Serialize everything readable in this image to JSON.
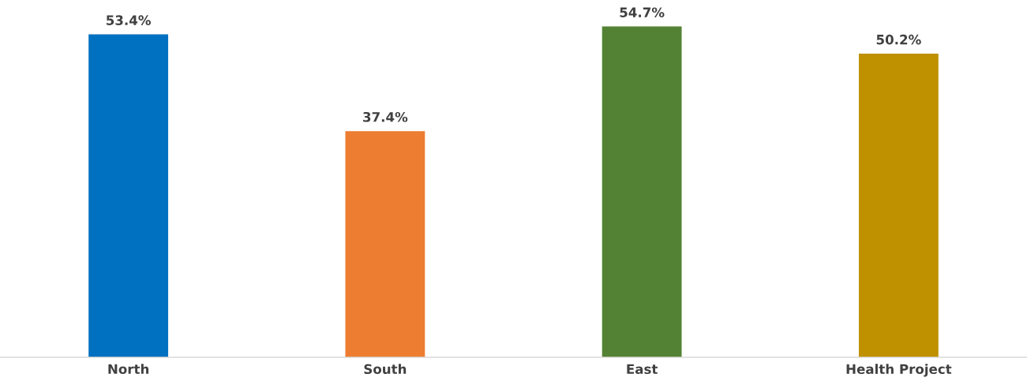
{
  "chart_data": {
    "type": "bar",
    "categories": [
      "North",
      "South",
      "East",
      "Health Project"
    ],
    "values": [
      53.4,
      37.4,
      54.7,
      50.2
    ],
    "colors": [
      "#0070c0",
      "#ed7d31",
      "#548235",
      "#bf9000"
    ],
    "value_labels": [
      "53.4%",
      "37.4%",
      "54.7%",
      "50.2%"
    ],
    "grid": false,
    "legend": false
  }
}
